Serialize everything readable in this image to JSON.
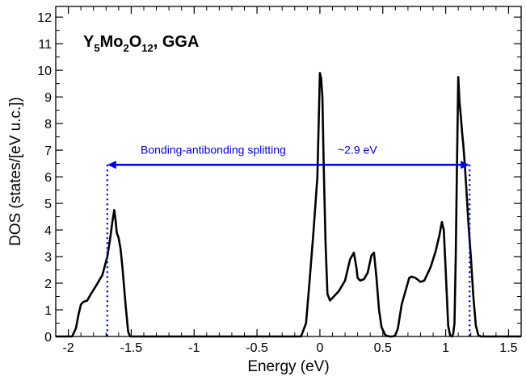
{
  "chart_data": {
    "type": "line",
    "title_parts": [
      {
        "text": "Y",
        "sub": false
      },
      {
        "text": "5",
        "sub": true
      },
      {
        "text": "Mo",
        "sub": false
      },
      {
        "text": "2",
        "sub": true
      },
      {
        "text": "O",
        "sub": false
      },
      {
        "text": "12",
        "sub": true
      },
      {
        "text": ", GGA",
        "sub": false
      }
    ],
    "xlabel": "Energy (eV)",
    "ylabel": "DOS (states/[eV u.c.])",
    "xlim": [
      -2.1,
      1.6
    ],
    "ylim": [
      0,
      12.4
    ],
    "xticks": [
      -2,
      -1.5,
      -1,
      -0.5,
      0,
      0.5,
      1,
      1.5
    ],
    "xtick_labels": [
      "-2",
      "-1.5",
      "-1",
      "-0.5",
      "0",
      "0.5",
      "1",
      "1.5"
    ],
    "yticks": [
      0,
      1,
      2,
      3,
      4,
      5,
      6,
      7,
      8,
      9,
      10,
      11,
      12
    ],
    "ytick_labels": [
      "0",
      "1",
      "2",
      "3",
      "4",
      "5",
      "6",
      "7",
      "8",
      "9",
      "10",
      "11",
      "12"
    ],
    "grid": false,
    "line_color": "#000000",
    "annotation_color": "#0000e6",
    "series": [
      {
        "x": [
          -2.1,
          -1.97,
          -1.94,
          -1.92,
          -1.9,
          -1.88,
          -1.85,
          -1.82,
          -1.78,
          -1.73,
          -1.69,
          -1.67,
          -1.65,
          -1.635,
          -1.625,
          -1.615,
          -1.6,
          -1.585,
          -1.57,
          -1.545,
          -1.525,
          -1.51,
          -1.5,
          -1.4,
          -0.2,
          -0.15,
          -0.11,
          -0.08,
          -0.05,
          -0.02,
          0.0,
          0.01,
          0.02,
          0.03,
          0.045,
          0.06,
          0.08,
          0.15,
          0.2,
          0.24,
          0.27,
          0.29,
          0.3,
          0.32,
          0.35,
          0.38,
          0.41,
          0.43,
          0.45,
          0.47,
          0.49,
          0.52,
          0.55,
          0.58,
          0.6,
          0.62,
          0.65,
          0.68,
          0.71,
          0.73,
          0.76,
          0.8,
          0.83,
          0.88,
          0.92,
          0.95,
          0.97,
          0.985,
          1.0,
          1.02,
          1.035,
          1.05,
          1.06,
          1.07,
          1.08,
          1.09,
          1.1,
          1.11,
          1.12,
          1.13,
          1.14,
          1.15,
          1.165,
          1.18,
          1.2,
          1.22,
          1.24,
          1.26,
          1.28,
          1.3,
          1.33,
          1.6
        ],
        "y": [
          0,
          0,
          0.3,
          0.8,
          1.2,
          1.3,
          1.35,
          1.6,
          1.9,
          2.3,
          3.0,
          3.6,
          4.3,
          4.75,
          4.4,
          3.9,
          3.7,
          3.3,
          2.6,
          1.2,
          0.2,
          0,
          0,
          0,
          0,
          0,
          0.5,
          2.2,
          4.0,
          6.0,
          9.9,
          9.7,
          9.0,
          6.5,
          3.5,
          1.6,
          1.35,
          1.7,
          2.1,
          2.9,
          3.15,
          2.6,
          2.2,
          2.1,
          2.15,
          2.4,
          3.05,
          3.15,
          2.2,
          1.0,
          0.35,
          0.05,
          0,
          0,
          0.05,
          0.3,
          1.2,
          1.7,
          2.2,
          2.25,
          2.2,
          2.05,
          2.1,
          2.6,
          3.2,
          3.8,
          4.3,
          4.0,
          2.5,
          0.4,
          0.05,
          0,
          0.1,
          0.5,
          3.0,
          6.5,
          9.75,
          8.8,
          8.3,
          7.7,
          7.2,
          6.6,
          5.5,
          4.3,
          3.0,
          1.5,
          0.4,
          0.05,
          0,
          0,
          0,
          0
        ]
      }
    ],
    "annotations": {
      "splitting_text": "Bonding-antibonding splitting",
      "value_text": "~2.9 eV",
      "arrow_x_start": -1.69,
      "arrow_x_end": 1.19,
      "arrow_y": 6.45
    }
  }
}
